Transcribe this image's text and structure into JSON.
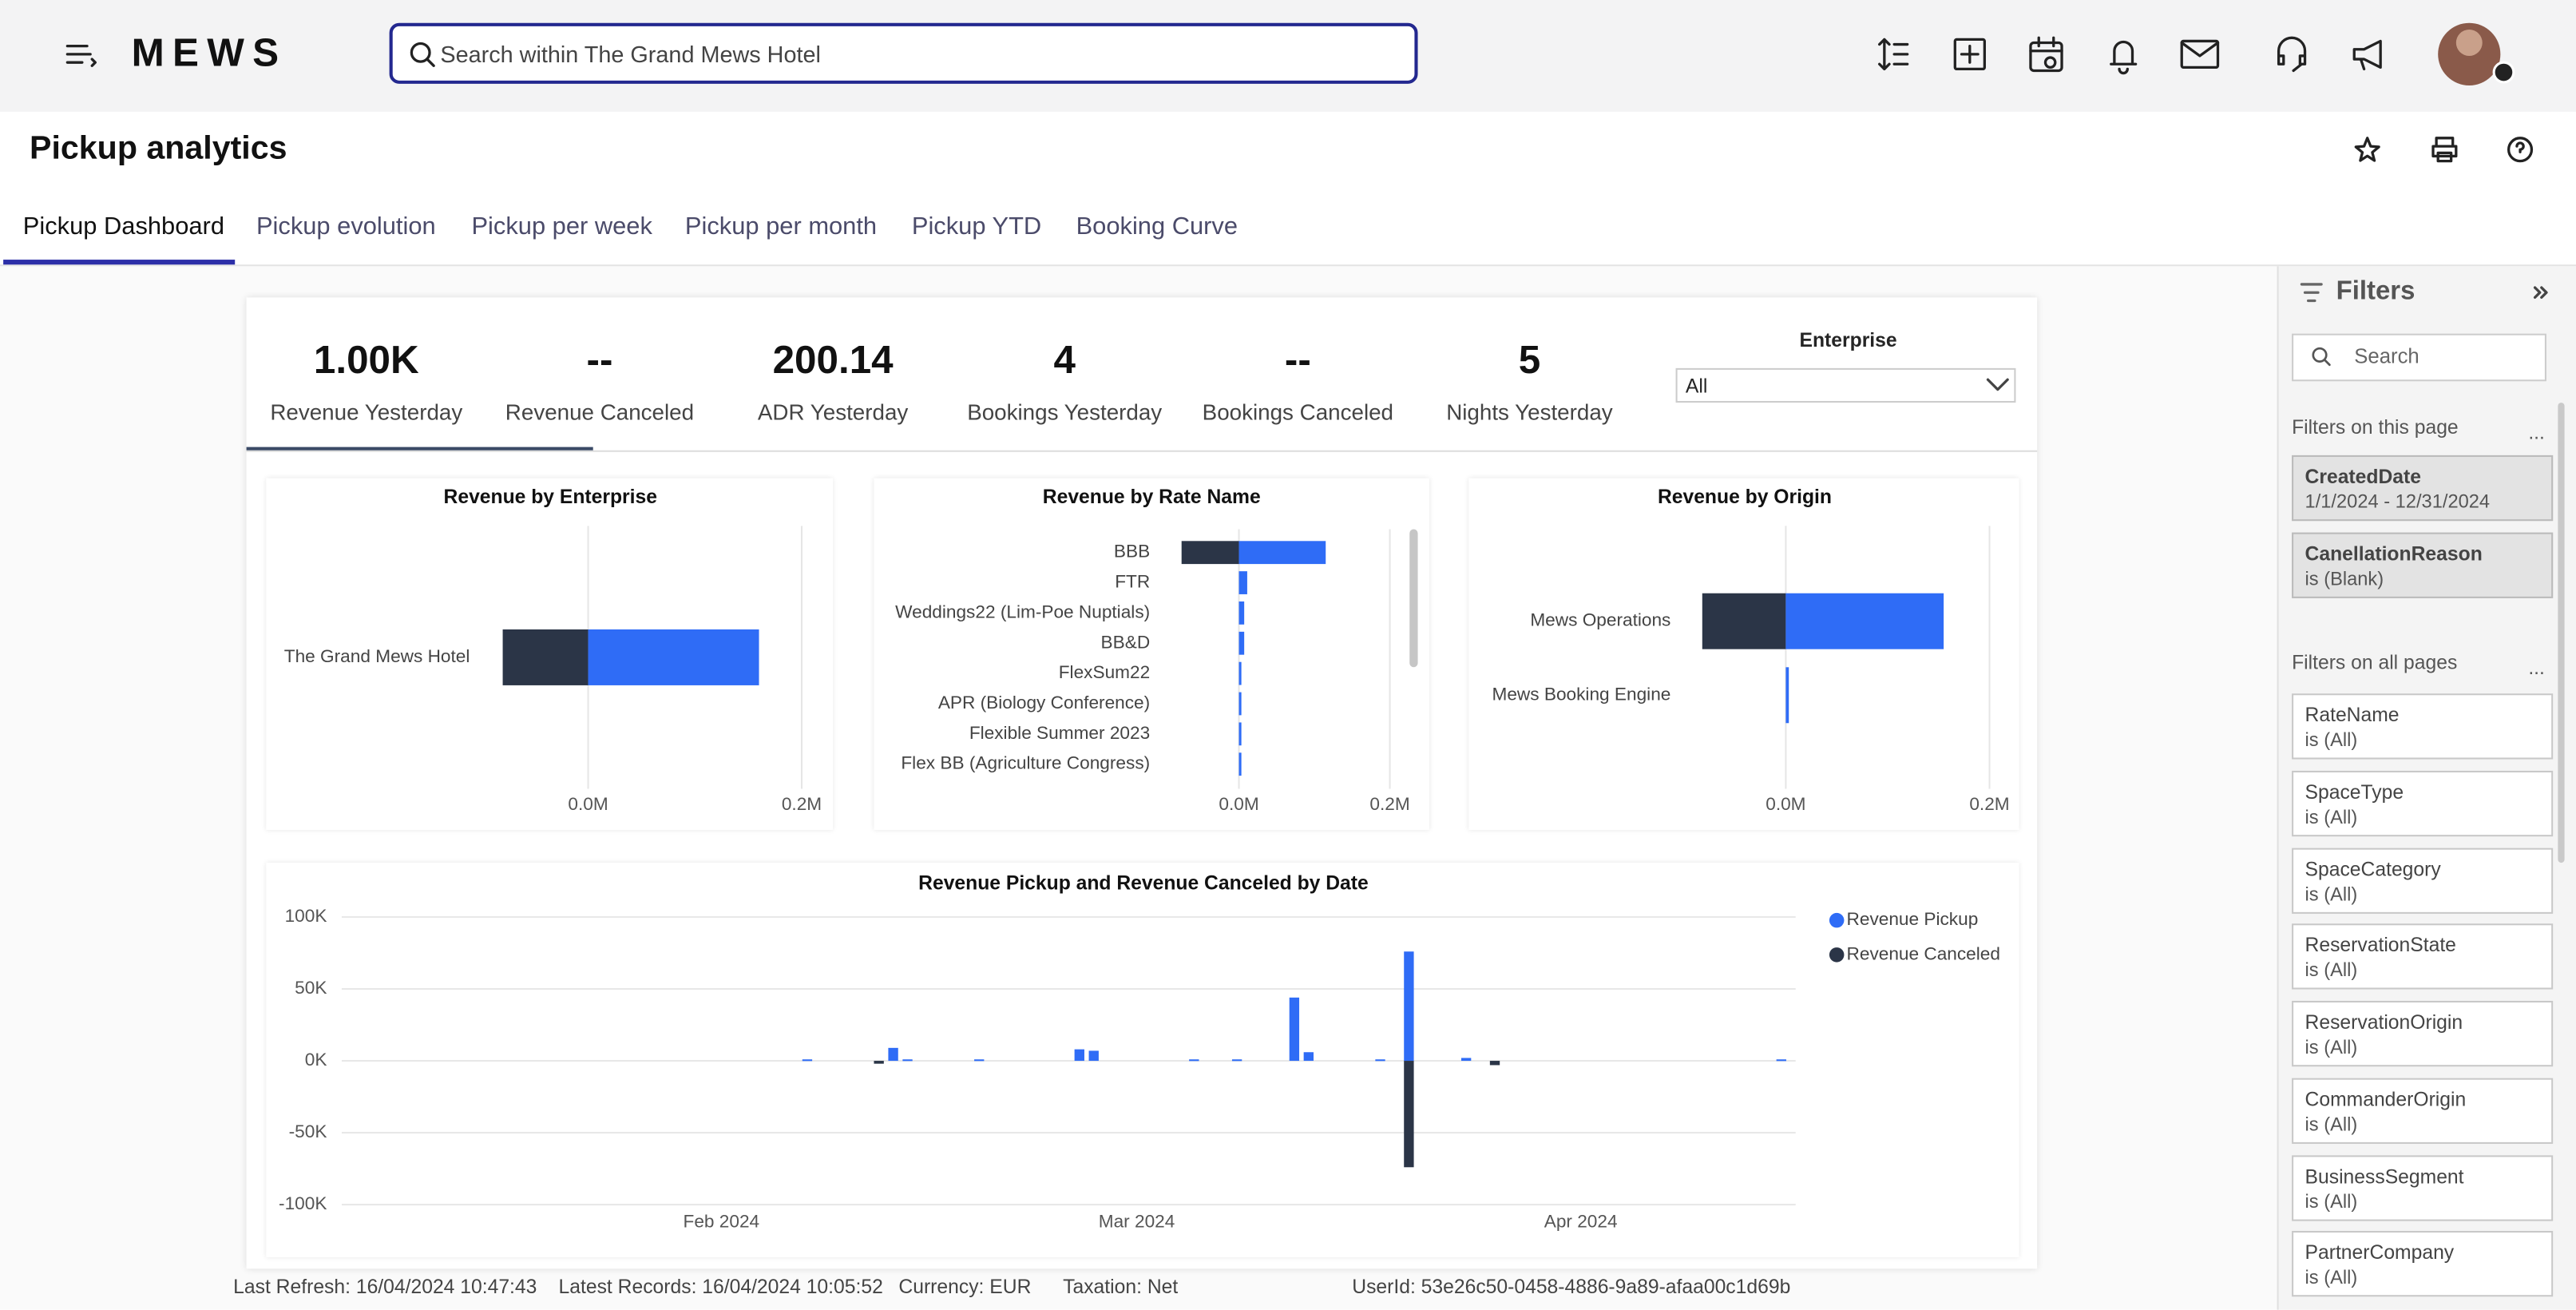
{
  "header": {
    "logo": "MEWS",
    "search_placeholder": "Search within The Grand Mews Hotel"
  },
  "page": {
    "title": "Pickup analytics",
    "tabs": [
      "Pickup Dashboard",
      "Pickup evolution",
      "Pickup per week",
      "Pickup per month",
      "Pickup YTD",
      "Booking Curve"
    ]
  },
  "kpis": [
    {
      "value": "1.00K",
      "label": "Revenue Yesterday"
    },
    {
      "value": "--",
      "label": "Revenue Canceled"
    },
    {
      "value": 200.14,
      "label": "ADR Yesterday"
    },
    {
      "value": 4,
      "label": "Bookings Yesterday"
    },
    {
      "value": "--",
      "label": "Bookings Canceled"
    },
    {
      "value": 5,
      "label": "Nights Yesterday"
    }
  ],
  "enterprise_filter": {
    "label": "Enterprise",
    "value": "All"
  },
  "charts": [
    {
      "type": "bar",
      "title": "Revenue by Enterprise",
      "categories": [
        "The Grand Mews Hotel"
      ],
      "series": [
        {
          "color": "#2b3547",
          "values": [
            -0.08
          ]
        },
        {
          "color": "#2f6cf6",
          "values": [
            0.16
          ]
        }
      ],
      "xlim": [
        -0.1,
        0.2
      ],
      "xticks": [
        {
          "value": 0,
          "label": "0.0M"
        },
        {
          "value": 0.2,
          "label": "0.2M"
        }
      ],
      "grid": true
    },
    {
      "type": "bar",
      "title": "Revenue by Rate Name",
      "categories": [
        "BBB",
        "FTR",
        "Weddings22 (Lim-Poe Nuptials)",
        "BB&D",
        "FlexSum22",
        "APR (Biology Conference)",
        "Flexible Summer 2023",
        "Flex BB (Agriculture Congress)"
      ],
      "series": [
        {
          "color": "#2b3547",
          "values": [
            -0.076,
            null,
            null,
            null,
            null,
            null,
            null,
            null
          ]
        },
        {
          "color": "#2f6cf6",
          "values": [
            0.115,
            0.011,
            0.007,
            0.007,
            0.002,
            0.002,
            0.002,
            0.002
          ]
        }
      ],
      "xlim": [
        -0.12,
        0.2
      ],
      "xticks": [
        {
          "value": 0,
          "label": "0.0M"
        },
        {
          "value": 0.2,
          "label": "0.2M"
        }
      ],
      "grid": true
    },
    {
      "type": "bar",
      "title": "Revenue by Origin",
      "categories": [
        "Mews Operations",
        "Mews Booking Engine"
      ],
      "series": [
        {
          "color": "#2b3547",
          "values": [
            -0.082,
            null
          ]
        },
        {
          "color": "#2f6cf6",
          "values": [
            0.155,
            0.003
          ]
        }
      ],
      "xlim": [
        -0.1,
        0.2
      ],
      "xticks": [
        {
          "value": 0,
          "label": "0.0M"
        },
        {
          "value": 0.2,
          "label": "0.2M"
        }
      ],
      "grid": true
    },
    {
      "type": "column",
      "title": "Revenue Pickup and Revenue Canceled by Date",
      "x": [
        38,
        43,
        44,
        45,
        50,
        57,
        58,
        65,
        68,
        72,
        73,
        78,
        80,
        84,
        86,
        106
      ],
      "series": [
        {
          "name": "Revenue Pickup",
          "color": "#2f6cf6",
          "values": [
            1000,
            null,
            9000,
            1000,
            1000,
            8000,
            7000,
            1000,
            1000,
            44000,
            6000,
            1000,
            76000,
            2000,
            null,
            1000
          ]
        },
        {
          "name": "Revenue Canceled",
          "color": "#2b3547",
          "values": [
            null,
            -2000,
            null,
            null,
            null,
            null,
            null,
            null,
            null,
            null,
            null,
            null,
            -74000,
            null,
            -3000,
            null
          ]
        }
      ],
      "xlim": [
        5.5,
        107
      ],
      "xticks": [
        {
          "value": 32,
          "label": "Feb 2024"
        },
        {
          "value": 61,
          "label": "Mar 2024"
        },
        {
          "value": 92,
          "label": "Apr 2024"
        }
      ],
      "ylim": [
        -100000,
        100000
      ],
      "yticks": [
        {
          "value": 100000,
          "label": "100K"
        },
        {
          "value": 50000,
          "label": "50K"
        },
        {
          "value": 0,
          "label": "0K"
        },
        {
          "value": -50000,
          "label": "-50K"
        },
        {
          "value": -100000,
          "label": "-100K"
        }
      ],
      "grid": true,
      "legend": "top-right"
    }
  ],
  "filters": {
    "title": "Filters",
    "search_placeholder": "Search",
    "this_page_heading": "Filters on this page",
    "this_page": [
      {
        "name": "CreatedDate",
        "value": "1/1/2024 - 12/31/2024"
      },
      {
        "name": "CanellationReason",
        "value": "is (Blank)"
      }
    ],
    "all_pages_heading": "Filters on all pages",
    "all_pages": [
      {
        "name": "RateName",
        "value": "is (All)"
      },
      {
        "name": "SpaceType",
        "value": "is (All)"
      },
      {
        "name": "SpaceCategory",
        "value": "is (All)"
      },
      {
        "name": "ReservationState",
        "value": "is (All)"
      },
      {
        "name": "ReservationOrigin",
        "value": "is (All)"
      },
      {
        "name": "CommanderOrigin",
        "value": "is (All)"
      },
      {
        "name": "BusinessSegment",
        "value": "is (All)"
      },
      {
        "name": "PartnerCompany",
        "value": "is (All)"
      }
    ]
  },
  "footer": [
    "Last Refresh: 16/04/2024 10:47:43",
    "Latest Records: 16/04/2024 10:05:52",
    "Currency: EUR",
    "Taxation: Net",
    "UserId: 53e26c50-0458-4886-9a89-afaa00c1d69b"
  ]
}
